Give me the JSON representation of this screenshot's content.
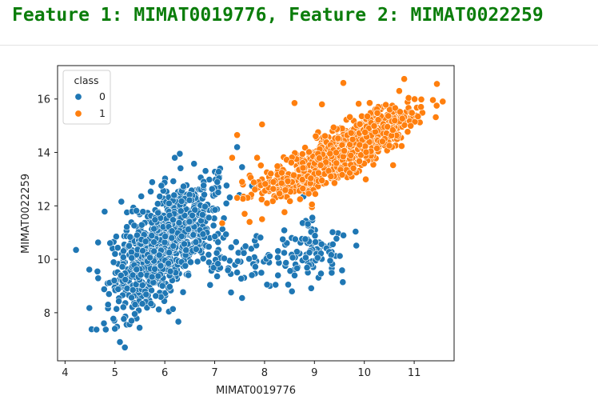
{
  "page": {
    "title": "Feature 1: MIMAT0019776, Feature 2: MIMAT0022259"
  },
  "chart_data": {
    "type": "scatter",
    "title": "",
    "xlabel": "MIMAT0019776",
    "ylabel": "MIMAT0022259",
    "xlim": [
      3.85,
      11.8
    ],
    "ylim": [
      6.2,
      17.25
    ],
    "xticks": [
      4,
      5,
      6,
      7,
      8,
      9,
      10,
      11
    ],
    "yticks": [
      8,
      10,
      12,
      14,
      16
    ],
    "grid": false,
    "legend": {
      "title": "class",
      "position": "top-left"
    },
    "series": [
      {
        "name": "0",
        "color": "#1f77b4",
        "clusters": [
          {
            "n": 780,
            "cx": 5.85,
            "cy": 10.3,
            "sx": 0.45,
            "sy": 1.05,
            "rho": 0.55
          },
          {
            "n": 230,
            "cx": 6.45,
            "cy": 11.4,
            "sx": 0.35,
            "sy": 0.85,
            "rho": 0.3
          },
          {
            "n": 110,
            "cx": 8.85,
            "cy": 10.25,
            "sx": 0.38,
            "sy": 0.5,
            "rho": 0.1
          },
          {
            "n": 60,
            "cx": 7.35,
            "cy": 9.9,
            "sx": 0.45,
            "sy": 0.55,
            "rho": 0.0
          }
        ],
        "points": [
          [
            4.22,
            10.35
          ],
          [
            4.78,
            7.6
          ],
          [
            5.2,
            6.7
          ],
          [
            5.1,
            6.9
          ],
          [
            5.0,
            7.4
          ],
          [
            6.3,
            13.95
          ],
          [
            6.2,
            13.8
          ],
          [
            7.45,
            14.2
          ],
          [
            7.55,
            13.45
          ],
          [
            8.55,
            8.8
          ],
          [
            8.05,
            9.05
          ],
          [
            7.55,
            8.55
          ],
          [
            8.78,
            12.35
          ],
          [
            7.75,
            12.75
          ]
        ]
      },
      {
        "name": "1",
        "color": "#ff7f0e",
        "clusters": [
          {
            "n": 780,
            "cx": 9.5,
            "cy": 14.0,
            "sx": 0.55,
            "sy": 0.65,
            "rho": 0.75
          },
          {
            "n": 160,
            "cx": 10.35,
            "cy": 15.0,
            "sx": 0.35,
            "sy": 0.5,
            "rho": 0.4
          },
          {
            "n": 90,
            "cx": 8.4,
            "cy": 13.0,
            "sx": 0.4,
            "sy": 0.45,
            "rho": 0.3
          }
        ],
        "points": [
          [
            11.45,
            15.75
          ],
          [
            10.8,
            16.75
          ],
          [
            10.7,
            16.3
          ],
          [
            9.58,
            16.6
          ],
          [
            9.15,
            15.8
          ],
          [
            8.6,
            15.85
          ],
          [
            7.45,
            14.65
          ],
          [
            7.35,
            13.8
          ],
          [
            7.55,
            12.9
          ],
          [
            7.45,
            12.3
          ],
          [
            7.6,
            11.7
          ],
          [
            7.7,
            11.4
          ],
          [
            7.95,
            11.5
          ],
          [
            8.05,
            12.1
          ],
          [
            7.85,
            13.8
          ],
          [
            7.95,
            15.05
          ],
          [
            8.95,
            11.95
          ],
          [
            9.15,
            12.95
          ],
          [
            7.15,
            11.35
          ],
          [
            8.95,
            12.05
          ]
        ]
      }
    ]
  }
}
